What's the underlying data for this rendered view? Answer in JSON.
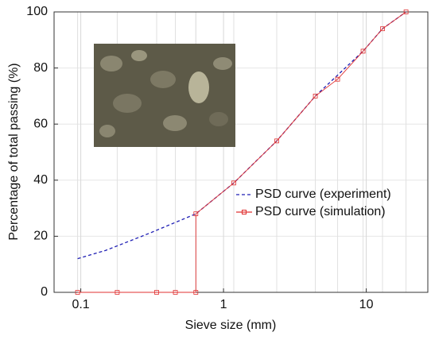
{
  "chart_data": {
    "type": "line",
    "xlabel": "Sieve size (mm)",
    "ylabel": "Percentage of total passing (%)",
    "xscale": "log",
    "xlim": [
      0.065,
      27
    ],
    "xticks": [
      0.1,
      1,
      10
    ],
    "ylim": [
      0,
      100
    ],
    "yticks": [
      0,
      20,
      40,
      60,
      80,
      100
    ],
    "grid": true,
    "series": [
      {
        "name": "PSD curve (experiment)",
        "color": "#1f1fb4",
        "dash": true,
        "x": [
          0.095,
          0.15,
          0.3,
          0.64,
          1.18,
          2.36,
          4.4,
          9.5,
          13,
          19
        ],
        "values": [
          12,
          15,
          21,
          28,
          39,
          54,
          70,
          86,
          94,
          100
        ]
      },
      {
        "name": "PSD curve (simulation)",
        "color": "#e03030",
        "dash": false,
        "x": [
          0.095,
          0.18,
          0.34,
          0.46,
          0.64,
          0.64,
          1.18,
          2.36,
          4.4,
          6.3,
          9.5,
          13,
          19
        ],
        "values": [
          0,
          0,
          0,
          0,
          0,
          28,
          39,
          54,
          70,
          76,
          86,
          94,
          100
        ]
      }
    ]
  }
}
